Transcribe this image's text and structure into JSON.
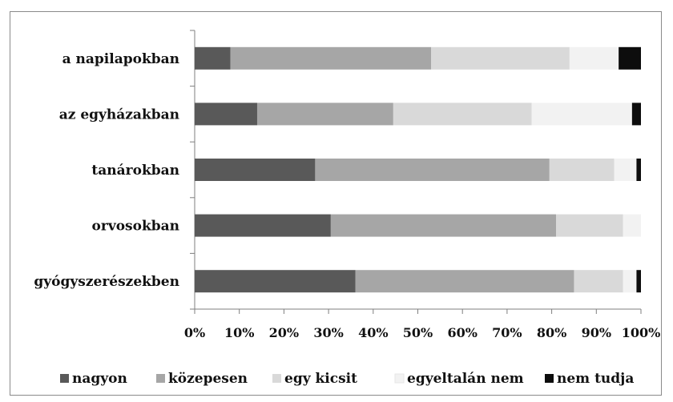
{
  "chart_data": {
    "type": "bar",
    "orientation": "horizontal",
    "stacked": "percent",
    "categories": [
      "a napilapokban",
      "az egyházakban",
      "tanárokban",
      "orvosokban",
      "gyógyszerészekben"
    ],
    "series": [
      {
        "name": "nagyon",
        "color": "#595959",
        "values": [
          8,
          14,
          27,
          30.5,
          36
        ]
      },
      {
        "name": "közepesen",
        "color": "#a6a6a6",
        "values": [
          45,
          30.5,
          52.5,
          50.5,
          49
        ]
      },
      {
        "name": "egy kicsit",
        "color": "#d9d9d9",
        "values": [
          31,
          31,
          14.5,
          15,
          11
        ]
      },
      {
        "name": "egyeltalán nem",
        "color": "#f2f2f2",
        "values": [
          11,
          22.5,
          5,
          4,
          3
        ]
      },
      {
        "name": "nem tudja",
        "color": "#0d0d0d",
        "values": [
          5,
          2,
          1,
          0,
          1
        ]
      }
    ],
    "x_ticks": [
      "0%",
      "10%",
      "20%",
      "30%",
      "40%",
      "50%",
      "60%",
      "70%",
      "80%",
      "90%",
      "100%"
    ],
    "xlim": [
      0,
      100
    ],
    "legend_position": "bottom",
    "grid": false
  }
}
